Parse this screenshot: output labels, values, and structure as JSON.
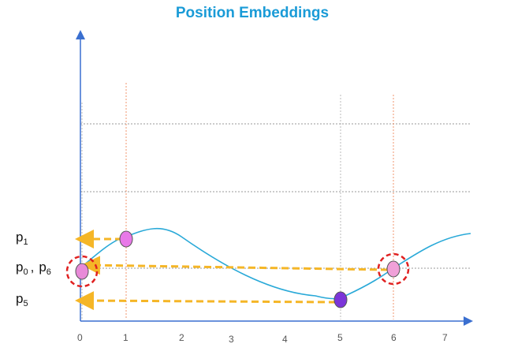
{
  "title": "Position Embeddings",
  "labels": {
    "p1": {
      "base": "p",
      "sub": "1"
    },
    "p0": {
      "base": "p",
      "sub": "0"
    },
    "p6": {
      "base": "p",
      "sub": "6"
    },
    "p5": {
      "base": "p",
      "sub": "5"
    },
    "separator": ","
  },
  "x_ticks": [
    "0",
    "1",
    "2",
    "3",
    "4",
    "5",
    "6",
    "7"
  ],
  "colors": {
    "title": "#1a9bd7",
    "curve": "#29a9d8",
    "arrow": "#f5b627",
    "guide": "#f08a5d",
    "highlight_circle": "#e02020",
    "point_pink": "#e879e8",
    "point_purple": "#7b35d9"
  }
}
